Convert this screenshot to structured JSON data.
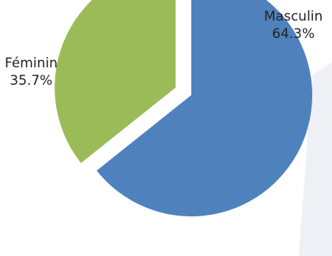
{
  "chart_data": {
    "type": "pie",
    "slices": [
      {
        "label": "Masculin",
        "percent_label": "64.3%",
        "value": 64.3,
        "color": "#4F81BD"
      },
      {
        "label": "Féminin",
        "percent_label": "35.7%",
        "value": 35.7,
        "color": "#9BBB59"
      }
    ],
    "exploded": true,
    "legend": "none"
  }
}
